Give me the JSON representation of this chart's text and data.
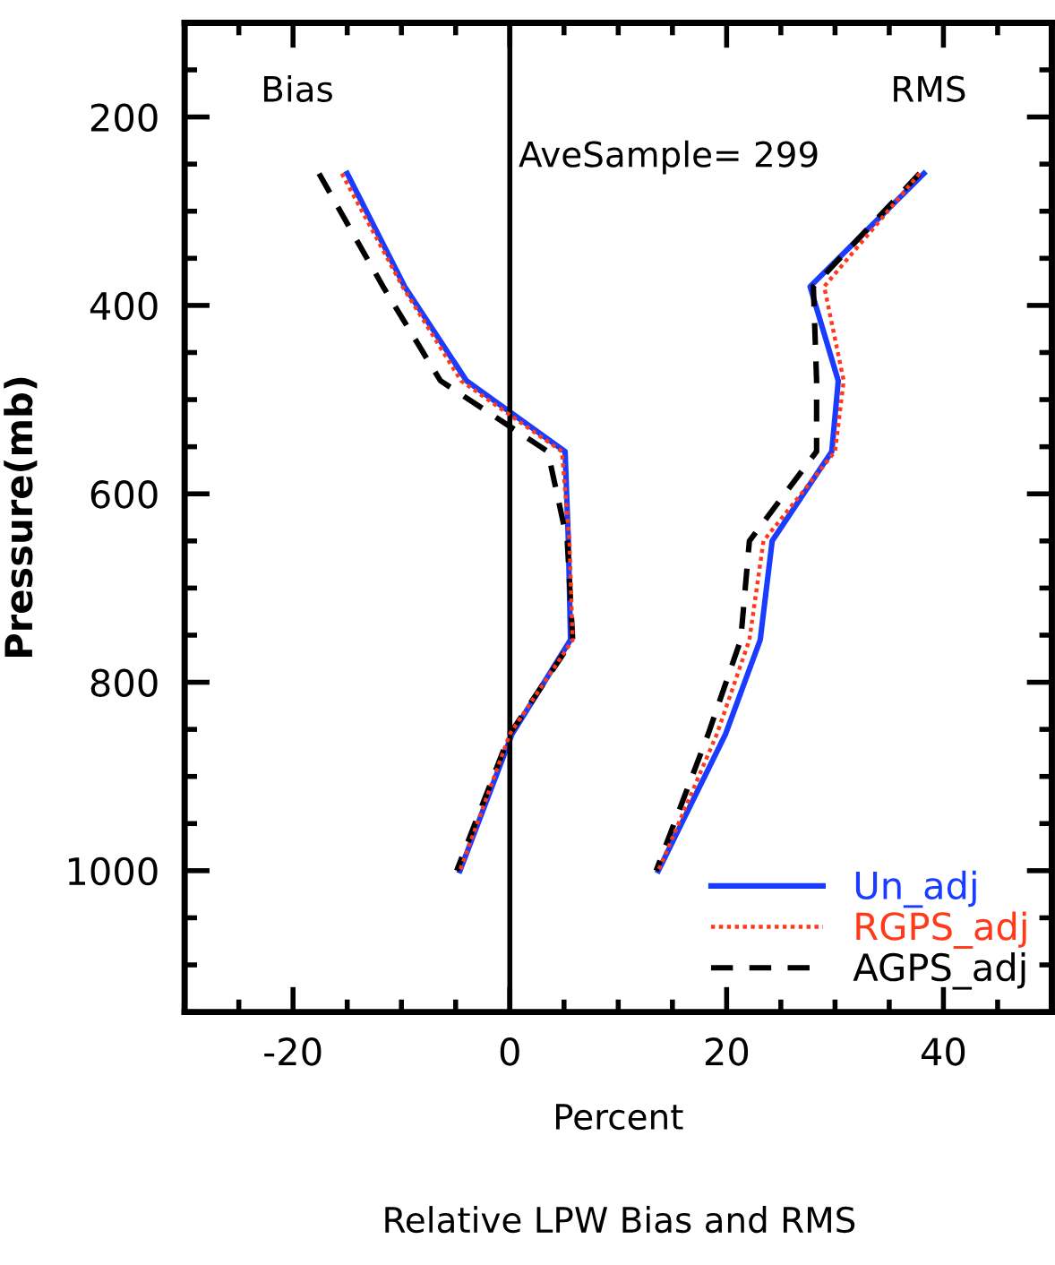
{
  "chart_data": {
    "type": "line",
    "title": "Relative LPW Bias and RMS",
    "xlabel": "Percent",
    "ylabel": "Pressure(mb)",
    "xlim": [
      -30,
      50
    ],
    "xticks": [
      -20,
      0,
      20,
      40
    ],
    "ylim": [
      1150,
      100
    ],
    "yticks": [
      200,
      400,
      600,
      800,
      1000
    ],
    "grid": false,
    "legend": "bottom right",
    "marker": "none",
    "annotations": [
      "Bias",
      "RMS",
      "AveSample= 299"
    ],
    "ref_lines": [
      {
        "axis": "x",
        "value": 0,
        "color": "#000000",
        "line_style": "solid"
      }
    ],
    "series": [
      {
        "color": "#1a3cff",
        "line_style": "solid",
        "x": [
          -15.0,
          -9.7,
          -4.0,
          5.1,
          5.4,
          5.6,
          0.2,
          -4.6
        ],
        "values": [
          260,
          380,
          480,
          555,
          650,
          755,
          855,
          1000
        ]
      },
      {
        "color": "#ff3a1a",
        "line_style": "dotted",
        "x": [
          -15.5,
          -9.9,
          -4.5,
          4.8,
          5.5,
          5.8,
          0.0,
          -4.6
        ],
        "values": [
          260,
          380,
          480,
          555,
          650,
          755,
          855,
          1000
        ]
      },
      {
        "color": "#000000",
        "line_style": "dashed",
        "x": [
          -17.6,
          -11.7,
          -6.4,
          3.5,
          5.3,
          5.8,
          0.0,
          -4.9
        ],
        "values": [
          260,
          380,
          480,
          555,
          650,
          755,
          855,
          1000
        ]
      },
      {
        "name": "Un_adj",
        "color": "#1a3cff",
        "line_style": "solid",
        "x": [
          38.2,
          27.7,
          30.3,
          29.7,
          24.2,
          23.1,
          19.9,
          13.7
        ],
        "values": [
          260,
          380,
          480,
          555,
          650,
          755,
          855,
          1000
        ]
      },
      {
        "name": "RGPS_adj",
        "color": "#ff3a1a",
        "line_style": "dotted",
        "x": [
          37.8,
          29.0,
          30.8,
          30.0,
          23.4,
          22.1,
          19.1,
          13.7
        ],
        "values": [
          260,
          380,
          480,
          555,
          650,
          755,
          855,
          1000
        ]
      },
      {
        "name": "AGPS_adj",
        "color": "#000000",
        "line_style": "dashed",
        "x": [
          37.8,
          28.0,
          28.3,
          28.3,
          22.1,
          21.3,
          18.3,
          13.5
        ],
        "values": [
          260,
          380,
          480,
          555,
          650,
          755,
          855,
          1000
        ]
      }
    ]
  }
}
